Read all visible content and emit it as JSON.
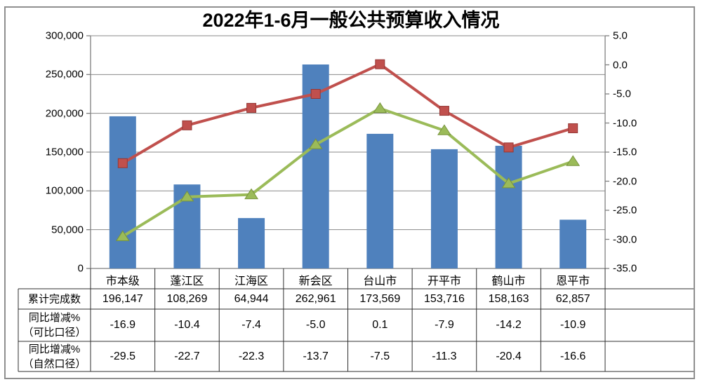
{
  "title": "2022年1-6月一般公共预算收入情况",
  "chart_data": {
    "type": "combo-bar-line",
    "title": "2022年1-6月一般公共预算收入情况",
    "categories": [
      "市本级",
      "蓬江区",
      "江海区",
      "新会区",
      "台山市",
      "开平市",
      "鹤山市",
      "恩平市"
    ],
    "series": [
      {
        "name": "累计完成数",
        "type": "bar",
        "axis": "left",
        "values": [
          196147,
          108269,
          64944,
          262961,
          173569,
          153716,
          158163,
          62857
        ]
      },
      {
        "name": "同比增减%（可比口径）",
        "type": "line",
        "marker": "square",
        "axis": "right",
        "values": [
          -16.9,
          -10.4,
          -7.4,
          -5.0,
          0.1,
          -7.9,
          -14.2,
          -10.9
        ]
      },
      {
        "name": "同比增减%（自然口径）",
        "type": "line",
        "marker": "triangle",
        "axis": "right",
        "values": [
          -29.5,
          -22.7,
          -22.3,
          -13.7,
          -7.5,
          -11.3,
          -20.4,
          -16.6
        ]
      }
    ],
    "left_axis": {
      "min": 0,
      "max": 300000,
      "step": 50000,
      "labels": [
        "0",
        "50,000",
        "100,000",
        "150,000",
        "200,000",
        "250,000",
        "300,000"
      ]
    },
    "right_axis": {
      "min": -35.0,
      "max": 5.0,
      "step": 5.0,
      "labels": [
        "5.0",
        "0.0",
        "-5.0",
        "-10.0",
        "-15.0",
        "-20.0",
        "-25.0",
        "-30.0",
        "-35.0"
      ]
    },
    "grid": true,
    "legend_position": "none (series identified by data table row headers)"
  },
  "table": {
    "rows": [
      {
        "header_lines": [
          "累计完成数"
        ],
        "values": [
          "196,147",
          "108,269",
          "64,944",
          "262,961",
          "173,569",
          "153,716",
          "158,163",
          "62,857"
        ]
      },
      {
        "header_lines": [
          "同比增减%",
          "（可比口径）"
        ],
        "values": [
          "-16.9",
          "-10.4",
          "-7.4",
          "-5.0",
          "0.1",
          "-7.9",
          "-14.2",
          "-10.9"
        ]
      },
      {
        "header_lines": [
          "同比增减%",
          "（自然口径）"
        ],
        "values": [
          "-29.5",
          "-22.7",
          "-22.3",
          "-13.7",
          "-7.5",
          "-11.3",
          "-20.4",
          "-16.6"
        ]
      }
    ]
  },
  "colors": {
    "bar": "#4F81BD",
    "line_comparable": "#C0504D",
    "line_comparable_edge": "#953735",
    "line_natural": "#9BBB59",
    "line_natural_edge": "#77933C",
    "gridline": "#8a8a8a",
    "axis": "#7f7f7f",
    "table_border": "#2f2f2f",
    "outer_border": "#8f8f8f",
    "background": "#ffffff",
    "text": "#000000"
  }
}
